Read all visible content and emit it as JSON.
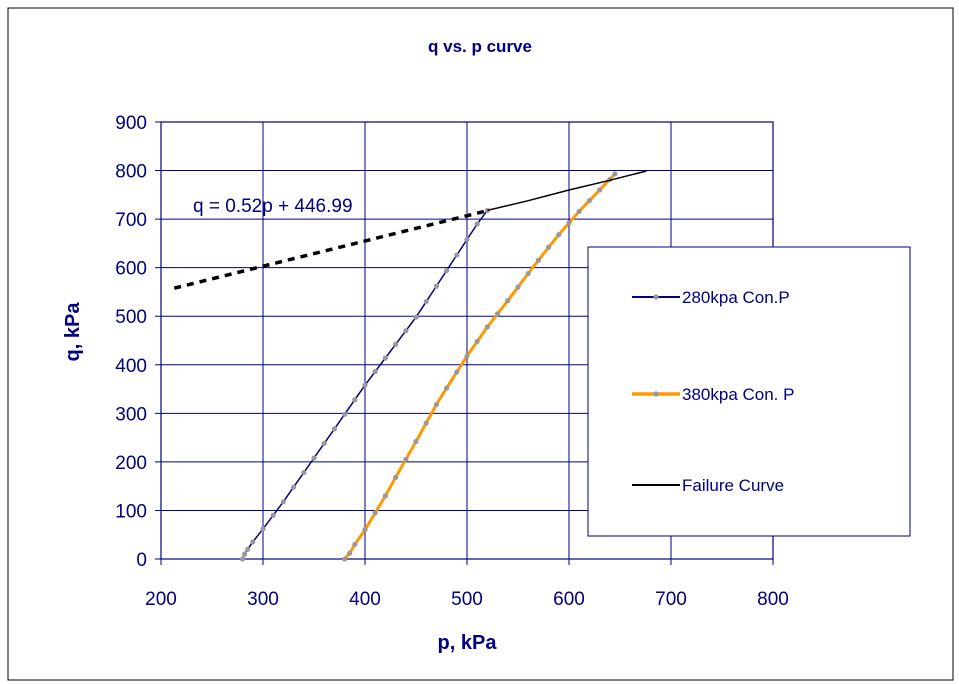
{
  "chart_data": {
    "type": "line",
    "title": "q vs. p curve",
    "xlabel": "p, kPa",
    "ylabel": "q, kPa",
    "xlim": [
      200,
      800
    ],
    "ylim": [
      0,
      900
    ],
    "xticks": [
      "200",
      "300",
      "400",
      "500",
      "600",
      "700",
      "800"
    ],
    "yticks": [
      "0",
      "100",
      "200",
      "300",
      "400",
      "500",
      "600",
      "700",
      "800",
      "900"
    ],
    "grid": true,
    "legend_position": "right",
    "annotation": "q = 0.52p + 446.99",
    "trendline": {
      "slope": 0.52,
      "intercept": 446.99,
      "x_range": [
        213,
        520
      ],
      "style": "dashed"
    },
    "series": [
      {
        "name": "280kpa Con.P",
        "color": "#000080",
        "x": [
          280,
          282,
          285,
          290,
          300,
          310,
          320,
          330,
          340,
          350,
          360,
          370,
          380,
          390,
          400,
          410,
          420,
          430,
          440,
          450,
          460,
          470,
          480,
          490,
          500,
          510,
          520
        ],
        "y": [
          0,
          10,
          20,
          35,
          62,
          90,
          118,
          148,
          178,
          208,
          238,
          268,
          298,
          328,
          358,
          386,
          414,
          442,
          470,
          498,
          530,
          562,
          594,
          626,
          658,
          690,
          718
        ]
      },
      {
        "name": "380kpa Con. P",
        "color": "#ff9900",
        "x": [
          380,
          385,
          390,
          400,
          410,
          420,
          430,
          440,
          450,
          460,
          470,
          480,
          490,
          500,
          510,
          520,
          530,
          540,
          550,
          560,
          570,
          580,
          590,
          600,
          610,
          620,
          630,
          640,
          645
        ],
        "y": [
          0,
          12,
          30,
          60,
          95,
          130,
          168,
          205,
          242,
          280,
          318,
          352,
          385,
          418,
          448,
          478,
          505,
          532,
          560,
          588,
          615,
          642,
          668,
          692,
          716,
          738,
          760,
          782,
          793
        ]
      },
      {
        "name": "Failure Curve",
        "color": "#000000",
        "x": [
          520,
          560,
          600,
          640,
          676
        ],
        "y": [
          718,
          738,
          760,
          780,
          799
        ]
      }
    ]
  }
}
